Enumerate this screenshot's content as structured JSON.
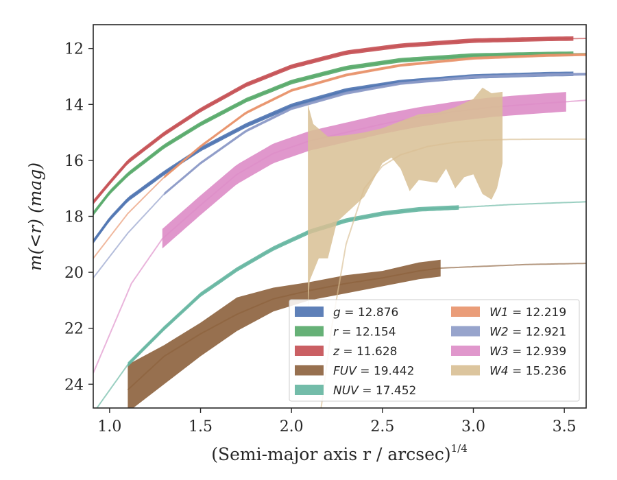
{
  "chart_data": {
    "type": "line",
    "xlabel": "(Semi-major axis r / arcsec)",
    "xlabel_power": "1/4",
    "ylabel": "m(<r) (mag)",
    "xlim": [
      0.91,
      3.62
    ],
    "ylim": [
      24.85,
      11.15
    ],
    "y_inverted": true,
    "x_ticks": [
      1.0,
      1.5,
      2.0,
      2.5,
      3.0,
      3.5
    ],
    "x_tick_labels": [
      "1.0",
      "1.5",
      "2.0",
      "2.5",
      "3.0",
      "3.5"
    ],
    "y_ticks": [
      12,
      14,
      16,
      18,
      20,
      22,
      24
    ],
    "y_tick_labels": [
      "12",
      "14",
      "16",
      "18",
      "20",
      "22",
      "24"
    ],
    "grid": false,
    "legend_position": "lower-right",
    "series": [
      {
        "name": "g = 12.876",
        "label_var": "g",
        "label_val": "12.876",
        "color": "#4c72b0",
        "x": [
          0.91,
          1.0,
          1.1,
          1.3,
          1.5,
          1.75,
          2.0,
          2.3,
          2.6,
          3.0,
          3.4,
          3.62
        ],
        "y": [
          18.9,
          18.1,
          17.4,
          16.45,
          15.6,
          14.75,
          14.05,
          13.5,
          13.2,
          13.0,
          12.92,
          12.9
        ],
        "band": 0.08,
        "band_x": [
          0.91,
          3.55
        ],
        "tail_to": 3.62,
        "tail_y": [
          12.9
        ]
      },
      {
        "name": "r = 12.154",
        "label_var": "r",
        "label_val": "12.154",
        "color": "#55a868",
        "x": [
          0.91,
          1.0,
          1.1,
          1.3,
          1.5,
          1.75,
          2.0,
          2.3,
          2.6,
          3.0,
          3.4,
          3.62
        ],
        "y": [
          17.9,
          17.15,
          16.5,
          15.5,
          14.7,
          13.85,
          13.2,
          12.7,
          12.42,
          12.25,
          12.2,
          12.18
        ],
        "band": 0.08,
        "band_x": [
          0.91,
          3.55
        ],
        "tail_to": 3.62
      },
      {
        "name": "z = 11.628",
        "label_var": "z",
        "label_val": "11.628",
        "color": "#c44e52",
        "x": [
          0.91,
          1.0,
          1.1,
          1.3,
          1.5,
          1.75,
          2.0,
          2.3,
          2.6,
          3.0,
          3.4,
          3.62
        ],
        "y": [
          17.5,
          16.8,
          16.05,
          15.05,
          14.2,
          13.3,
          12.65,
          12.15,
          11.9,
          11.72,
          11.66,
          11.64
        ],
        "band": 0.08,
        "band_x": [
          0.91,
          3.55
        ],
        "tail_to": 3.62
      },
      {
        "name": "FUV = 19.442",
        "label_var": "FUV",
        "label_val": "19.442",
        "color": "#8c613c",
        "x": [
          1.1,
          1.3,
          1.5,
          1.7,
          1.9,
          2.1,
          2.3,
          2.5,
          2.7,
          2.82,
          3.0,
          3.3,
          3.62
        ],
        "y": [
          24.2,
          23.0,
          22.2,
          21.5,
          20.95,
          20.65,
          20.4,
          20.2,
          19.95,
          19.85,
          19.8,
          19.72,
          19.68
        ],
        "band_upper": [
          23.3,
          22.6,
          21.8,
          20.9,
          20.55,
          20.35,
          20.1,
          19.95,
          19.65,
          19.55
        ],
        "band_lower": [
          25.0,
          24.0,
          23.0,
          22.1,
          21.4,
          21.0,
          20.75,
          20.5,
          20.25,
          20.15
        ],
        "band_x": [
          1.1,
          2.82
        ]
      },
      {
        "name": "NUV = 17.452",
        "label_var": "NUV",
        "label_val": "17.452",
        "color": "#64b5a0",
        "x": [
          0.93,
          1.1,
          1.3,
          1.5,
          1.7,
          1.9,
          2.1,
          2.3,
          2.5,
          2.7,
          2.93,
          3.2,
          3.62
        ],
        "y": [
          24.85,
          23.3,
          22.0,
          20.8,
          19.9,
          19.15,
          18.55,
          18.15,
          17.9,
          17.75,
          17.68,
          17.58,
          17.48
        ],
        "band": 0.08,
        "band_x": [
          1.1,
          2.93
        ]
      },
      {
        "name": "W1 = 12.219",
        "label_var": "W1",
        "label_val": "12.219",
        "color": "#e8926a",
        "x": [
          0.91,
          1.1,
          1.3,
          1.5,
          1.75,
          2.0,
          2.3,
          2.6,
          3.0,
          3.4,
          3.62
        ],
        "y": [
          19.5,
          17.9,
          16.6,
          15.5,
          14.3,
          13.5,
          12.95,
          12.6,
          12.35,
          12.25,
          12.22
        ],
        "band": 0.05,
        "band_x": [
          1.3,
          3.62
        ]
      },
      {
        "name": "W2 = 12.921",
        "label_var": "W2",
        "label_val": "12.921",
        "color": "#8c9ac7",
        "x": [
          0.91,
          1.1,
          1.3,
          1.5,
          1.75,
          2.0,
          2.3,
          2.6,
          3.0,
          3.4,
          3.62
        ],
        "y": [
          20.2,
          18.6,
          17.2,
          16.1,
          14.95,
          14.15,
          13.6,
          13.25,
          13.02,
          12.94,
          12.92
        ],
        "band": 0.05,
        "band_x": [
          1.3,
          3.62
        ]
      },
      {
        "name": "W3 = 12.939",
        "label_var": "W3",
        "label_val": "12.939",
        "color": "#dd8cc7",
        "x": [
          0.91,
          1.12,
          1.29,
          1.5,
          1.7,
          1.9,
          2.1,
          2.3,
          2.5,
          2.7,
          2.9,
          3.1,
          3.3,
          3.52,
          3.62
        ],
        "y": [
          23.6,
          20.4,
          18.8,
          17.6,
          16.5,
          15.75,
          15.3,
          15.0,
          14.7,
          14.45,
          14.25,
          14.1,
          14.0,
          13.9,
          13.85
        ],
        "band": 0.35,
        "band_x": [
          1.29,
          3.52
        ]
      },
      {
        "name": "W4 = 15.236",
        "label_var": "W4",
        "label_val": "15.236",
        "color": "#d8bf94",
        "x": [
          2.16,
          2.22,
          2.3,
          2.4,
          2.5,
          2.6,
          2.75,
          2.9,
          3.05,
          3.2,
          3.4,
          3.62
        ],
        "y": [
          25.0,
          22.0,
          19.0,
          17.0,
          16.2,
          15.8,
          15.5,
          15.35,
          15.28,
          15.25,
          15.24,
          15.24
        ],
        "band_upper_x": [
          2.09,
          2.12,
          2.2,
          2.3,
          2.4,
          2.5,
          2.6,
          2.7,
          2.8,
          2.9,
          3.0,
          3.05,
          3.1,
          3.16
        ],
        "band_upper_y": [
          14.0,
          14.7,
          15.15,
          15.1,
          15.0,
          14.85,
          14.6,
          14.35,
          14.3,
          14.1,
          13.8,
          13.4,
          13.6,
          13.55
        ],
        "band_lower_x": [
          2.09,
          2.1,
          2.15,
          2.2,
          2.25,
          2.3,
          2.4,
          2.5,
          2.55,
          2.6,
          2.65,
          2.7,
          2.8,
          2.85,
          2.9,
          2.95,
          3.0,
          3.05,
          3.1,
          3.13,
          3.16
        ],
        "band_lower_y": [
          21.5,
          20.3,
          19.5,
          19.5,
          18.2,
          17.9,
          17.3,
          16.1,
          15.9,
          16.3,
          17.1,
          16.7,
          16.8,
          16.3,
          17.0,
          16.6,
          16.5,
          17.2,
          17.4,
          17.0,
          16.1
        ]
      }
    ]
  }
}
